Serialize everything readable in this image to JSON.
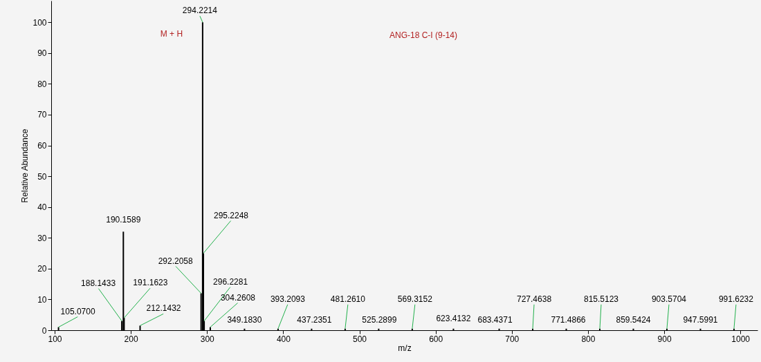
{
  "chart_data": {
    "type": "bar",
    "xlabel": "m/z",
    "ylabel": "Relative Abundance",
    "color": "#000000",
    "x": [
      105.07,
      188.1433,
      190.1589,
      191.1623,
      212.1432,
      292.2058,
      294.2214,
      295.2248,
      296.2281,
      304.2608,
      349.183,
      393.2093,
      437.2351,
      481.261,
      525.2899,
      569.3152,
      623.4132,
      683.4371,
      727.4638,
      771.4866,
      815.5123,
      859.5424,
      903.5704,
      947.5991,
      991.6232
    ],
    "values": [
      1,
      3,
      32,
      4,
      1.5,
      12,
      100,
      25,
      3,
      1,
      0.5,
      0.5,
      0.5,
      0.5,
      0.5,
      0.5,
      0.5,
      0.5,
      0.5,
      0.5,
      0.5,
      0.5,
      0.5,
      0.5,
      0.5
    ],
    "xlim": [
      100,
      1018
    ],
    "ylim": [
      0,
      107
    ],
    "xticks": [
      100,
      200,
      300,
      400,
      500,
      600,
      700,
      800,
      900,
      1000
    ],
    "yticks": [
      0,
      10,
      20,
      30,
      40,
      50,
      60,
      70,
      80,
      90,
      100
    ],
    "grid": false,
    "annotations": [
      {
        "text": "105.0700",
        "x": 105.07,
        "y": 1
      },
      {
        "text": "188.1433",
        "x": 188.1433,
        "y": 3
      },
      {
        "text": "190.1589",
        "x": 190.1589,
        "y": 32
      },
      {
        "text": "191.1623",
        "x": 191.1623,
        "y": 4
      },
      {
        "text": "212.1432",
        "x": 212.1432,
        "y": 1.5
      },
      {
        "text": "292.2058",
        "x": 292.2058,
        "y": 12
      },
      {
        "text": "294.2214",
        "x": 294.2214,
        "y": 100
      },
      {
        "text": "295.2248",
        "x": 295.2248,
        "y": 25
      },
      {
        "text": "296.2281",
        "x": 296.2281,
        "y": 3
      },
      {
        "text": "304.2608",
        "x": 304.2608,
        "y": 1
      },
      {
        "text": "349.1830",
        "x": 349.183,
        "y": 0.5
      },
      {
        "text": "393.2093",
        "x": 393.2093,
        "y": 0.5
      },
      {
        "text": "437.2351",
        "x": 437.2351,
        "y": 0.5
      },
      {
        "text": "481.2610",
        "x": 481.261,
        "y": 0.5
      },
      {
        "text": "525.2899",
        "x": 525.2899,
        "y": 0.5
      },
      {
        "text": "569.3152",
        "x": 569.3152,
        "y": 0.5
      },
      {
        "text": "623.4132",
        "x": 623.4132,
        "y": 0.5
      },
      {
        "text": "683.4371",
        "x": 683.4371,
        "y": 0.5
      },
      {
        "text": "727.4638",
        "x": 727.4638,
        "y": 0.5
      },
      {
        "text": "771.4866",
        "x": 771.4866,
        "y": 0.5
      },
      {
        "text": "815.5123",
        "x": 815.5123,
        "y": 0.5
      },
      {
        "text": "859.5424",
        "x": 859.5424,
        "y": 0.5
      },
      {
        "text": "903.5704",
        "x": 903.5704,
        "y": 0.5
      },
      {
        "text": "947.5991",
        "x": 947.5991,
        "y": 0.5
      },
      {
        "text": "991.6232",
        "x": 991.6232,
        "y": 0.5
      },
      {
        "text": "M + H",
        "x": 294.2214,
        "y": 100
      },
      "ANG-18 C-I (9-14)"
    ]
  }
}
